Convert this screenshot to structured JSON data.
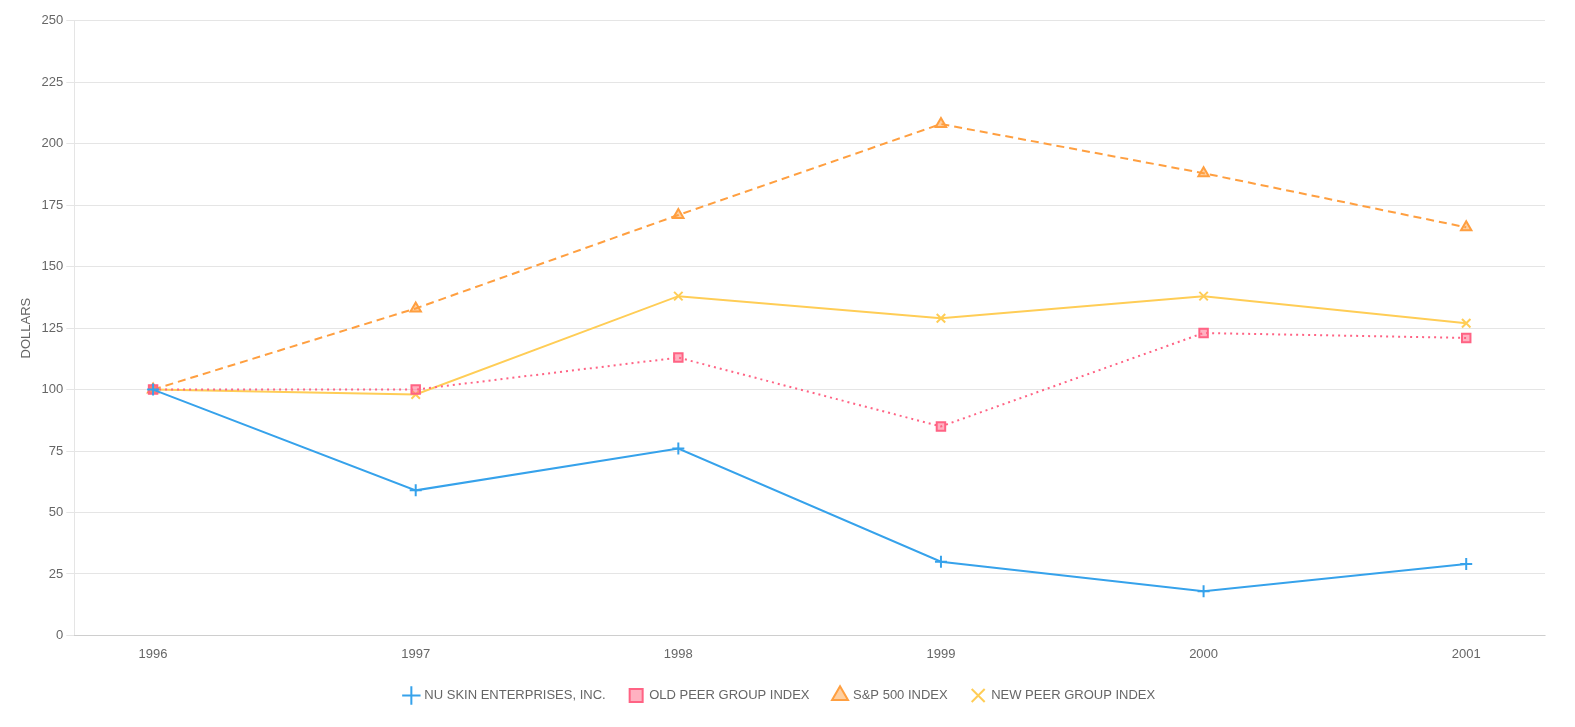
{
  "chart_data": {
    "type": "line",
    "ylabel": "DOLLARS",
    "x": [
      1996,
      1997,
      1998,
      1999,
      2000,
      2001
    ],
    "series": [
      {
        "name": "NU SKIN ENTERPRISES, INC.",
        "values": [
          100,
          59,
          76,
          30,
          18,
          29
        ],
        "marker": "plus",
        "line_style": "solid"
      },
      {
        "name": "OLD PEER GROUP INDEX",
        "values": [
          100,
          100,
          113,
          85,
          123,
          121
        ],
        "marker": "square",
        "line_style": "dotted"
      },
      {
        "name": "S&P 500 INDEX",
        "values": [
          100,
          133,
          171,
          208,
          188,
          166
        ],
        "marker": "triangle",
        "line_style": "dashed"
      },
      {
        "name": "NEW PEER GROUP INDEX",
        "values": [
          100,
          98,
          138,
          129,
          138,
          127
        ],
        "marker": "x",
        "line_style": "solid"
      }
    ],
    "xlim": [
      1995.7,
      2001.3
    ],
    "xticks": [
      1996,
      1997,
      1998,
      1999,
      2000,
      2001
    ],
    "ylim": [
      0,
      250
    ],
    "yticks": [
      0,
      25,
      50,
      75,
      100,
      125,
      150,
      175,
      200,
      225,
      250
    ],
    "grid": "y",
    "legend": "bottom"
  }
}
